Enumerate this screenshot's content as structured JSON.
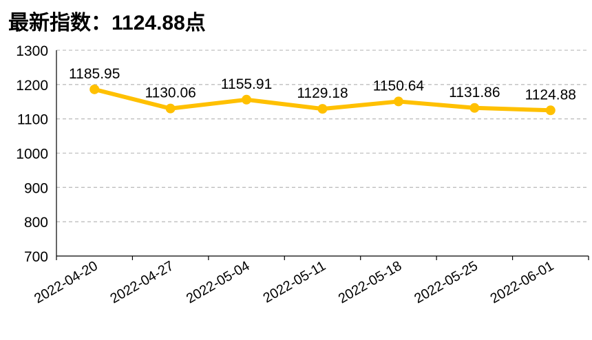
{
  "title": "最新指数：1124.88点",
  "colors": {
    "line": "#FFC000",
    "grid": "#BFBFBF",
    "axis": "#000000"
  },
  "chart_data": {
    "type": "line",
    "title": "最新指数：1124.88点",
    "xlabel": "",
    "ylabel": "",
    "categories": [
      "2022-04-20",
      "2022-04-27",
      "2022-05-04",
      "2022-05-11",
      "2022-05-18",
      "2022-05-25",
      "2022-06-01"
    ],
    "values": [
      1185.95,
      1130.06,
      1155.91,
      1129.18,
      1150.64,
      1131.86,
      1124.88
    ],
    "data_labels": [
      "1185.95",
      "1130.06",
      "1155.91",
      "1129.18",
      "1150.64",
      "1131.86",
      "1124.88"
    ],
    "ylim": [
      700,
      1300
    ],
    "yticks": [
      "700",
      "800",
      "900",
      "1000",
      "1100",
      "1200",
      "1300"
    ],
    "grid": "horizontal dashed",
    "legend": "none"
  }
}
